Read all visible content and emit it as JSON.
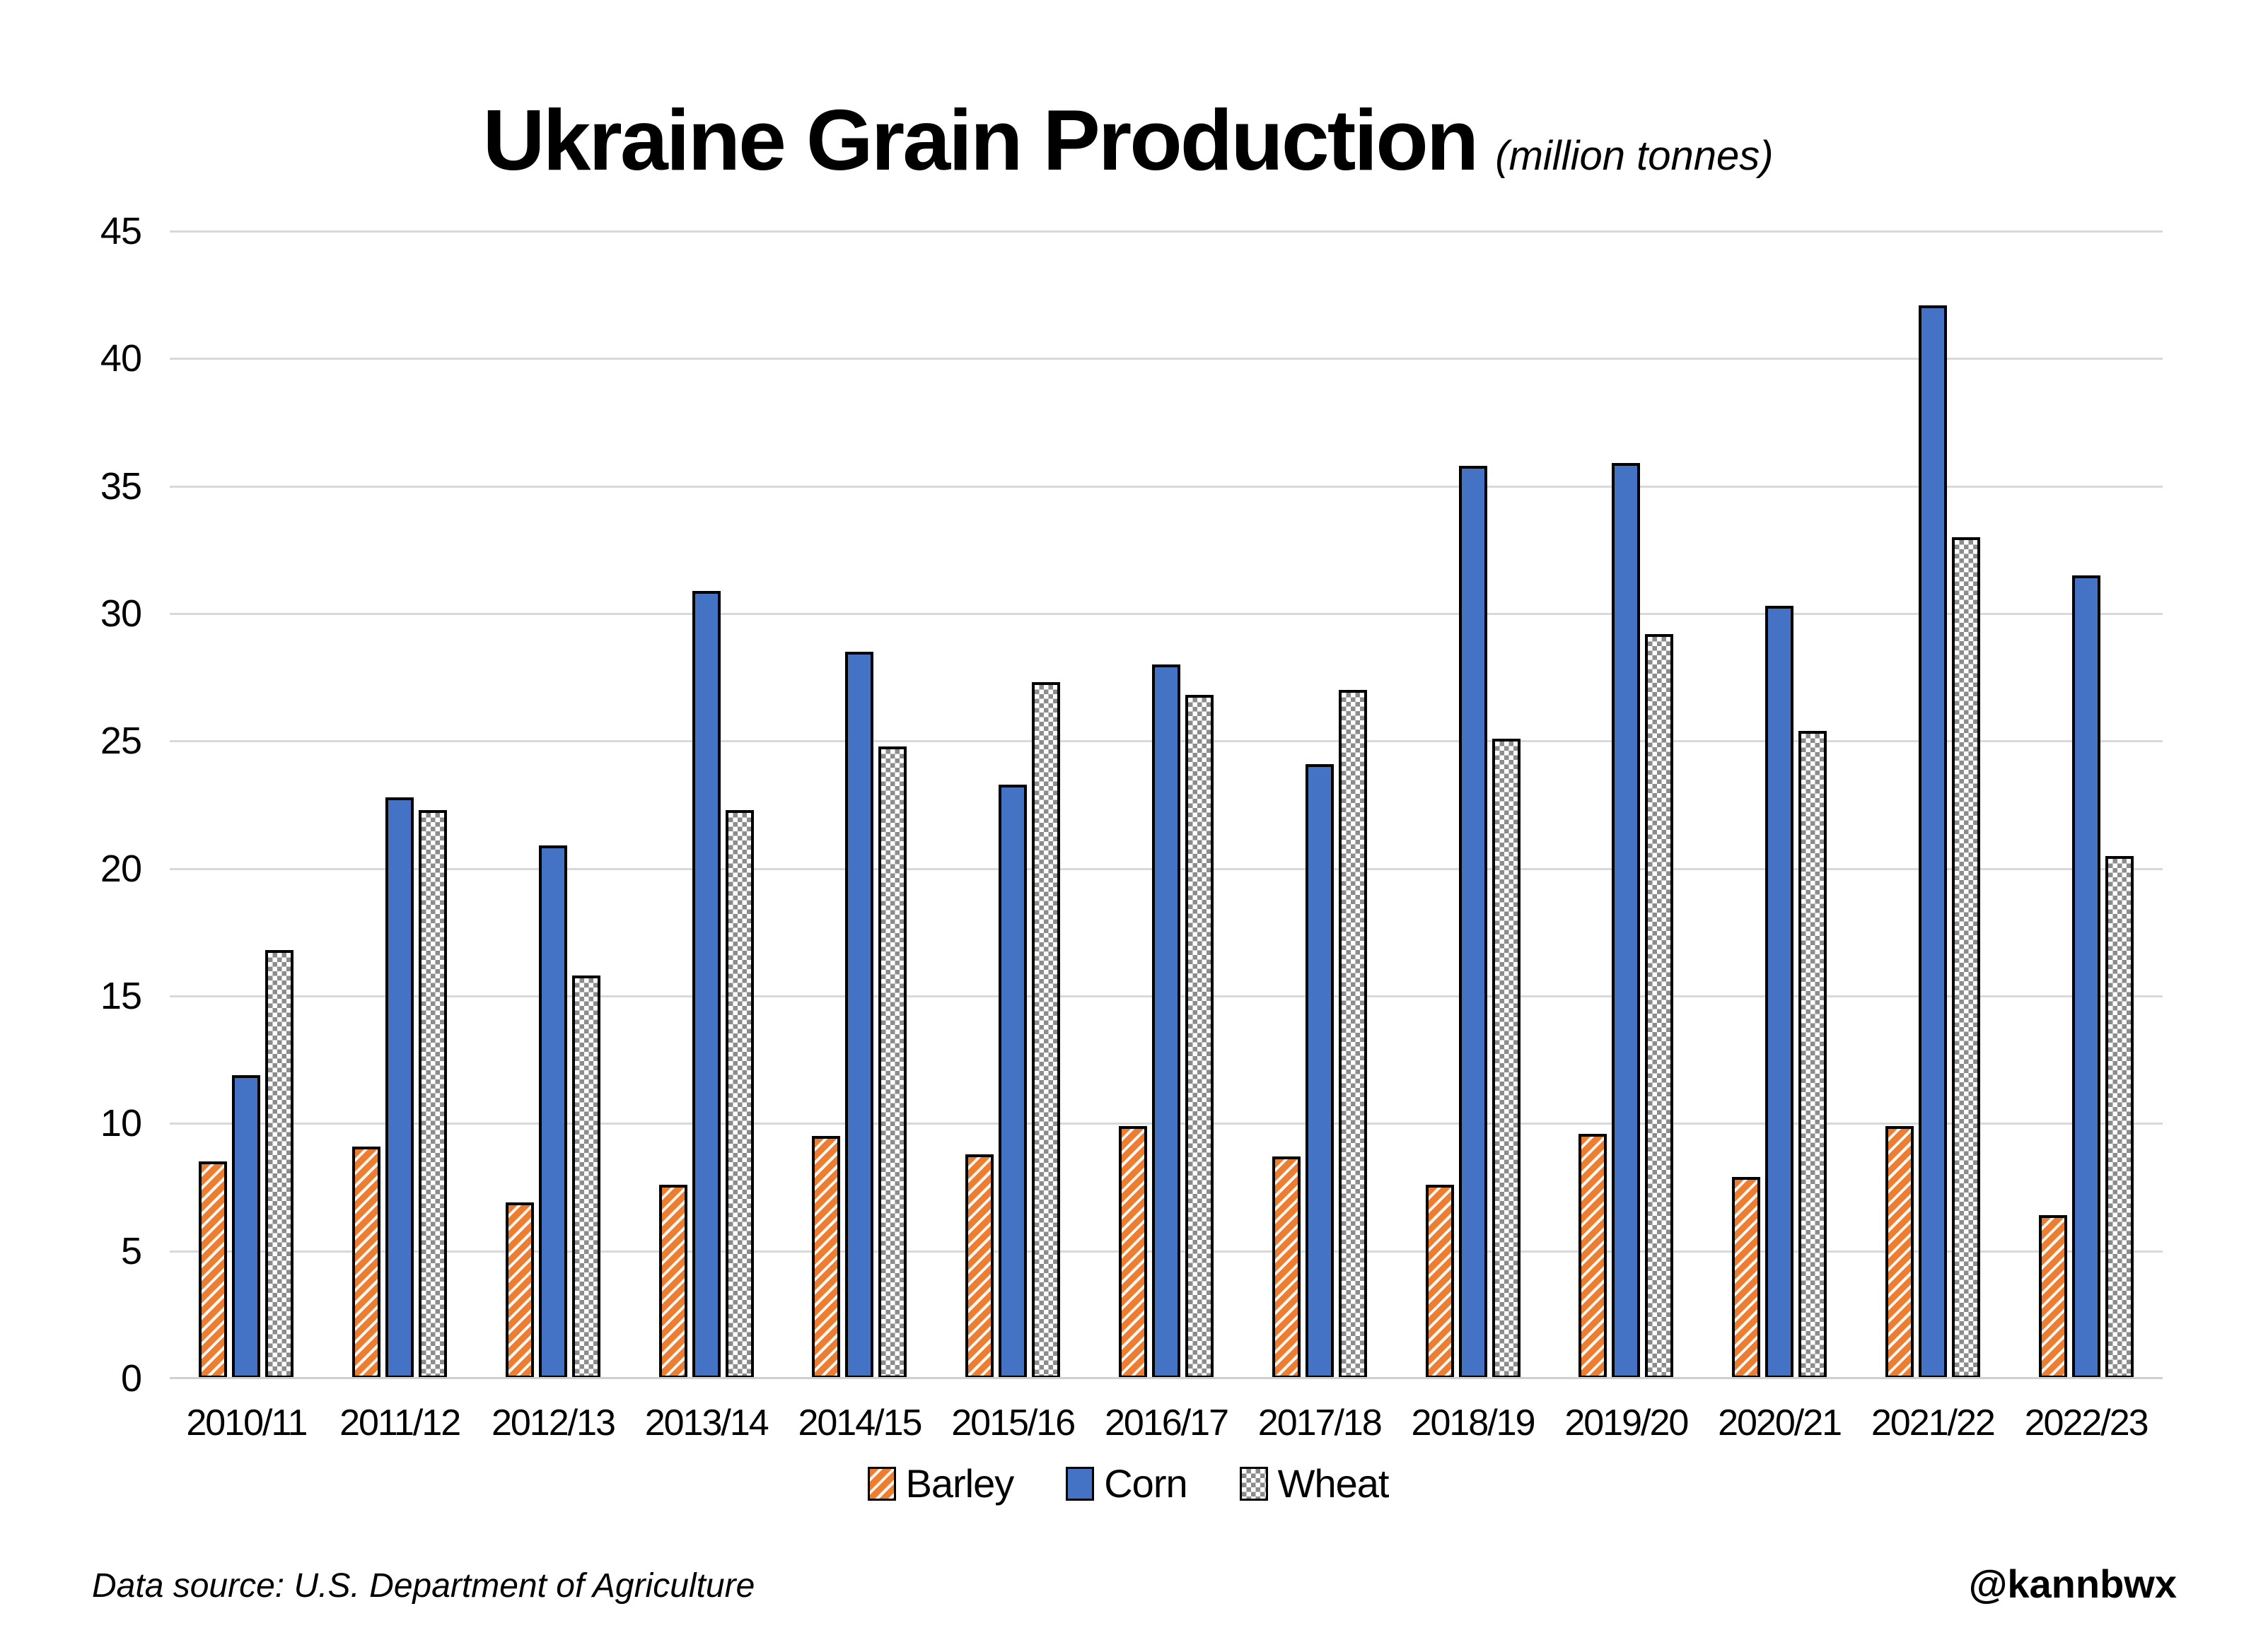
{
  "title": "Ukraine Grain Production",
  "subtitle": "(million tonnes)",
  "footer": {
    "source": "Data source: U.S. Department of Agriculture",
    "credit": "@kannbwx"
  },
  "colors": {
    "barley": "#ED7D31",
    "corn": "#4472C4",
    "wheat_pattern_gray": "#8C8C8C",
    "gridline": "#D9D9D9",
    "bar_outline": "#000000"
  },
  "chart_data": {
    "type": "bar",
    "title": "Ukraine Grain Production",
    "subtitle": "(million tonnes)",
    "categories": [
      "2010/11",
      "2011/12",
      "2012/13",
      "2013/14",
      "2014/15",
      "2015/16",
      "2016/17",
      "2017/18",
      "2018/19",
      "2019/20",
      "2020/21",
      "2021/22",
      "2022/23"
    ],
    "series": [
      {
        "name": "Barley",
        "color": "#ED7D31",
        "pattern": "diagonal-hatch",
        "values": [
          8.5,
          9.1,
          6.9,
          7.6,
          9.5,
          8.8,
          9.9,
          8.7,
          7.6,
          9.6,
          7.9,
          9.9,
          6.4
        ]
      },
      {
        "name": "Corn",
        "color": "#4472C4",
        "pattern": "solid",
        "values": [
          11.9,
          22.8,
          20.9,
          30.9,
          28.5,
          23.3,
          28.0,
          24.1,
          35.8,
          35.9,
          30.3,
          42.1,
          31.5
        ]
      },
      {
        "name": "Wheat",
        "color": "#8C8C8C",
        "pattern": "checker",
        "values": [
          16.8,
          22.3,
          15.8,
          22.3,
          24.8,
          27.3,
          26.8,
          27.0,
          25.1,
          29.2,
          25.4,
          33.0,
          20.5
        ]
      }
    ],
    "ylim": [
      0,
      45
    ],
    "yticks": [
      0,
      5,
      10,
      15,
      20,
      25,
      30,
      35,
      40,
      45
    ],
    "grid": true,
    "legend_position": "bottom"
  }
}
